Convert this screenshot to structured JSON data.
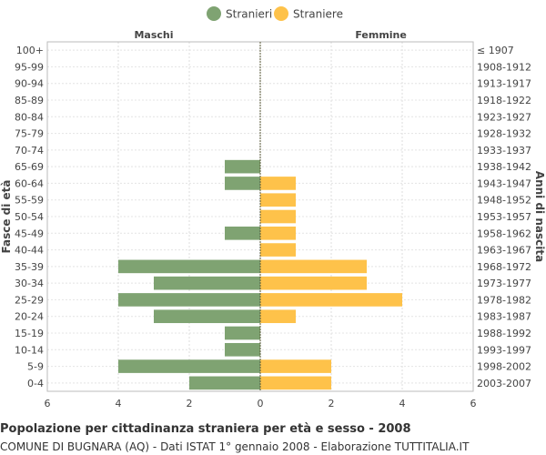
{
  "chart_data": {
    "type": "bar",
    "orientation": "horizontal-population-pyramid",
    "title": "Popolazione per cittadinanza straniera per età e sesso - 2008",
    "subtitle": "COMUNE DI BUGNARA (AQ) - Dati ISTAT 1° gennaio 2008 - Elaborazione TUTTITALIA.IT",
    "left_header": "Maschi",
    "right_header": "Femmine",
    "ylabel_left": "Fasce di età",
    "ylabel_right": "Anni di nascita",
    "xlim": [
      -6,
      6
    ],
    "x_ticks": [
      6,
      4,
      2,
      0,
      2,
      4,
      6
    ],
    "grid": true,
    "legend_position": "top-center",
    "categories": [
      "100+",
      "95-99",
      "90-94",
      "85-89",
      "80-84",
      "75-79",
      "70-74",
      "65-69",
      "60-64",
      "55-59",
      "50-54",
      "45-49",
      "40-44",
      "35-39",
      "30-34",
      "25-29",
      "20-24",
      "15-19",
      "10-14",
      "5-9",
      "0-4"
    ],
    "birth_years": [
      "≤ 1907",
      "1908-1912",
      "1913-1917",
      "1918-1922",
      "1923-1927",
      "1928-1932",
      "1933-1937",
      "1938-1942",
      "1943-1947",
      "1948-1952",
      "1953-1957",
      "1958-1962",
      "1963-1967",
      "1968-1972",
      "1973-1977",
      "1978-1982",
      "1983-1987",
      "1988-1992",
      "1993-1997",
      "1998-2002",
      "2003-2007"
    ],
    "series": [
      {
        "name": "Stranieri",
        "color": "#7fa372",
        "side": "left",
        "values": [
          0,
          0,
          0,
          0,
          0,
          0,
          0,
          1,
          1,
          0,
          0,
          1,
          0,
          4,
          3,
          4,
          3,
          1,
          1,
          4,
          2
        ]
      },
      {
        "name": "Straniere",
        "color": "#fec24a",
        "side": "right",
        "values": [
          0,
          0,
          0,
          0,
          0,
          0,
          0,
          0,
          1,
          1,
          1,
          1,
          1,
          3,
          3,
          4,
          1,
          0,
          0,
          2,
          2
        ]
      }
    ]
  }
}
